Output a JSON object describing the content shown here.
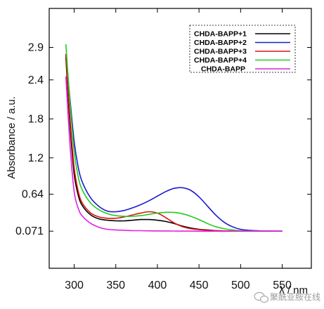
{
  "chart_data": {
    "type": "line",
    "xlabel": "λ / nm",
    "ylabel": "Absorbance / a.u.",
    "xlim": [
      270,
      585
    ],
    "ylim": [
      -0.5,
      3.5
    ],
    "x_ticks": [
      "300",
      "350",
      "400",
      "450",
      "500",
      "550"
    ],
    "y_ticks": [
      "0.071",
      "0.64",
      "1.2",
      "1.8",
      "2.4",
      "2.9"
    ],
    "y_tick_values": [
      0.071,
      0.64,
      1.2,
      1.8,
      2.4,
      2.9
    ],
    "grid": false,
    "legend_position": "top-right",
    "series": [
      {
        "name": "CHDA-BAPP+1",
        "color": "#000000",
        "x": [
          290,
          295,
          300,
          305,
          310,
          320,
          330,
          340,
          350,
          360,
          370,
          380,
          390,
          400,
          410,
          420,
          430,
          440,
          450,
          460,
          470,
          480,
          490,
          500,
          510,
          520,
          530,
          540,
          550
        ],
        "y": [
          2.75,
          1.7,
          0.95,
          0.62,
          0.46,
          0.32,
          0.26,
          0.24,
          0.23,
          0.23,
          0.24,
          0.25,
          0.25,
          0.24,
          0.22,
          0.19,
          0.15,
          0.12,
          0.1,
          0.09,
          0.08,
          0.075,
          0.073,
          0.072,
          0.071,
          0.071,
          0.071,
          0.071,
          0.071
        ]
      },
      {
        "name": "CHDA-BAPP+2",
        "color": "#1a1ad0",
        "x": [
          290,
          295,
          300,
          305,
          310,
          320,
          330,
          340,
          350,
          360,
          370,
          380,
          390,
          400,
          410,
          420,
          430,
          440,
          450,
          460,
          470,
          480,
          490,
          500,
          510,
          520,
          530,
          540,
          550
        ],
        "y": [
          2.8,
          2.1,
          1.45,
          1.05,
          0.82,
          0.58,
          0.45,
          0.38,
          0.37,
          0.39,
          0.43,
          0.48,
          0.54,
          0.61,
          0.68,
          0.73,
          0.74,
          0.7,
          0.6,
          0.46,
          0.32,
          0.21,
          0.14,
          0.1,
          0.085,
          0.078,
          0.074,
          0.072,
          0.071
        ]
      },
      {
        "name": "CHDA-BAPP+3",
        "color": "#e01010",
        "x": [
          290,
          295,
          300,
          305,
          310,
          320,
          330,
          340,
          350,
          360,
          370,
          380,
          390,
          400,
          410,
          420,
          430,
          440,
          450,
          460,
          470,
          480,
          490,
          500,
          510,
          520,
          530,
          540,
          550
        ],
        "y": [
          2.8,
          1.8,
          1.05,
          0.68,
          0.5,
          0.35,
          0.29,
          0.27,
          0.27,
          0.29,
          0.32,
          0.35,
          0.37,
          0.35,
          0.28,
          0.2,
          0.14,
          0.11,
          0.095,
          0.085,
          0.08,
          0.076,
          0.074,
          0.072,
          0.071,
          0.071,
          0.071,
          0.071,
          0.071
        ]
      },
      {
        "name": "CHDA-BAPP+4",
        "color": "#22cc22",
        "x": [
          290,
          295,
          300,
          305,
          310,
          320,
          330,
          340,
          350,
          360,
          370,
          380,
          390,
          400,
          410,
          420,
          430,
          440,
          450,
          460,
          470,
          480,
          490,
          500,
          510,
          520,
          530,
          540,
          550
        ],
        "y": [
          2.95,
          2.05,
          1.3,
          0.9,
          0.7,
          0.5,
          0.4,
          0.34,
          0.31,
          0.3,
          0.3,
          0.31,
          0.33,
          0.35,
          0.36,
          0.36,
          0.34,
          0.3,
          0.25,
          0.19,
          0.14,
          0.11,
          0.09,
          0.08,
          0.075,
          0.073,
          0.072,
          0.071,
          0.071
        ]
      },
      {
        "name": "CHDA-BAPP",
        "color": "#e020e0",
        "x": [
          290,
          295,
          300,
          305,
          310,
          320,
          330,
          340,
          350,
          360,
          370,
          380,
          390,
          400,
          420,
          440,
          460,
          480,
          500,
          520,
          550
        ],
        "y": [
          2.45,
          1.4,
          0.68,
          0.42,
          0.3,
          0.19,
          0.13,
          0.1,
          0.09,
          0.085,
          0.08,
          0.078,
          0.076,
          0.075,
          0.073,
          0.072,
          0.071,
          0.071,
          0.071,
          0.071,
          0.071
        ]
      }
    ]
  },
  "watermark": {
    "text": "聚酰亚胺在线",
    "icon": "wechat-icon"
  }
}
